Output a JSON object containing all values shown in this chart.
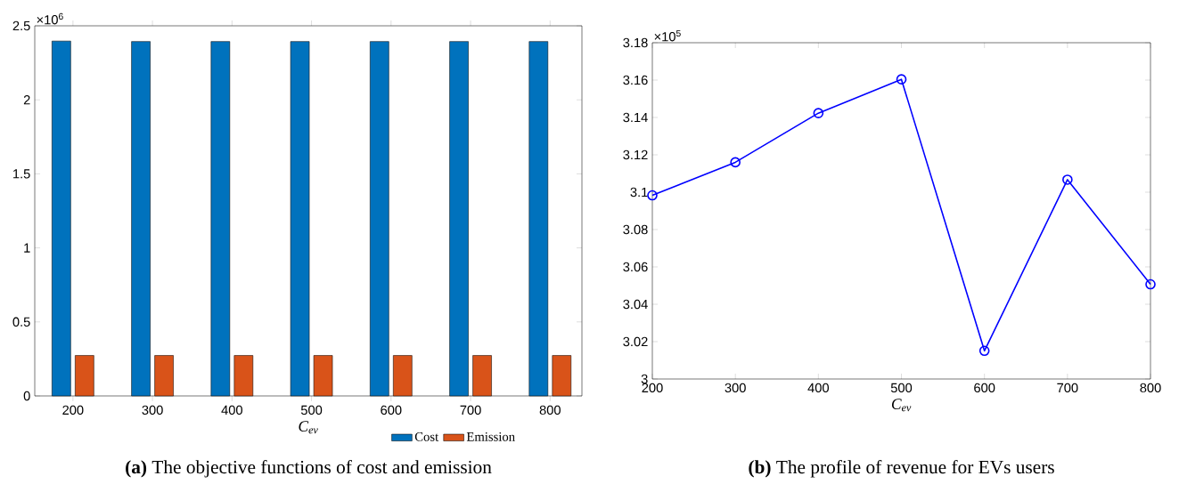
{
  "chart_data": [
    {
      "type": "bar",
      "title": "**(a)** The objective functions of cost and emission",
      "xlabel": "C$_{ev}$",
      "categories": [
        "200",
        "300",
        "400",
        "500",
        "600",
        "700",
        "800"
      ],
      "series": [
        {
          "name": "Cost",
          "color": "#0072bd",
          "values": [
            2.397,
            2.394,
            2.394,
            2.394,
            2.394,
            2.394,
            2.394
          ]
        },
        {
          "name": "Emission",
          "color": "#d95319",
          "values": [
            0.273,
            0.273,
            0.273,
            0.273,
            0.273,
            0.273,
            0.273
          ]
        }
      ],
      "ylim": [
        0,
        2.5
      ],
      "yticks": [
        0,
        0.5,
        1,
        1.5,
        2,
        2.5
      ],
      "legend": "bottom",
      "annotations": [
        "×10$^{6}$"
      ]
    },
    {
      "type": "line",
      "title": "**(b)** The profile of revenue for EVs users",
      "xlabel": "C$_{ev}$",
      "x": [
        200,
        300,
        400,
        500,
        600,
        700,
        800
      ],
      "series": [
        {
          "color": "#0000ff",
          "values": [
            3.0983,
            3.116,
            3.1423,
            3.1604,
            3.0151,
            3.1067,
            3.0507
          ]
        }
      ],
      "xlim": [
        200,
        800
      ],
      "xticks": [
        200,
        300,
        400,
        500,
        600,
        700,
        800
      ],
      "ylim": [
        3,
        3.18
      ],
      "yticks": [
        3,
        3.02,
        3.04,
        3.06,
        3.08,
        3.1,
        3.12,
        3.14,
        3.16,
        3.18
      ],
      "marker": "circle",
      "line_style": "solid",
      "annotations": [
        "×10$^{5}$"
      ]
    }
  ]
}
